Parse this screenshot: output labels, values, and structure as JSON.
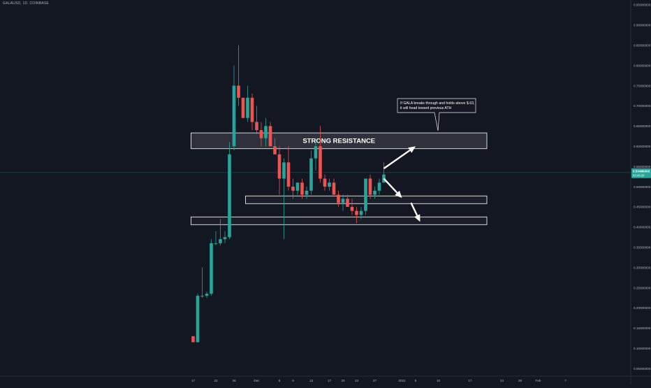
{
  "header": {
    "symbol_line": "GALAUSD, 1D, COINBASE"
  },
  "colors": {
    "background": "#131722",
    "up": "#26a69a",
    "down": "#ef5350",
    "axis_text": "#b2b5be",
    "annotation": "#ffffff",
    "price_tag_bg": "#26a69a"
  },
  "chart_data": {
    "type": "candlestick",
    "title": "GALAUSD, 1D, COINBASE",
    "y_axis_ticks": [
      "0.95000000",
      "0.90000000",
      "0.85000000",
      "0.80000000",
      "0.75000000",
      "0.70000000",
      "0.65000000",
      "0.60000000",
      "0.55000000",
      "0.50000000",
      "0.45000000",
      "0.40000000",
      "0.35000000",
      "0.30000000",
      "0.25000000",
      "0.20000000",
      "0.15000000",
      "0.10000000",
      "0.05000000"
    ],
    "y_tick_values": [
      0.95,
      0.9,
      0.85,
      0.8,
      0.75,
      0.7,
      0.65,
      0.6,
      0.55,
      0.5,
      0.45,
      0.4,
      0.35,
      0.3,
      0.25,
      0.2,
      0.15,
      0.1,
      0.05
    ],
    "ylim": [
      0.045,
      0.955
    ],
    "x_axis_ticks": [
      {
        "label": "17",
        "index": 0
      },
      {
        "label": "22",
        "index": 5
      },
      {
        "label": "26",
        "index": 9
      },
      {
        "label": "Dec",
        "index": 14
      },
      {
        "label": "6",
        "index": 19
      },
      {
        "label": "9",
        "index": 22
      },
      {
        "label": "13",
        "index": 26
      },
      {
        "label": "17",
        "index": 30
      },
      {
        "label": "20",
        "index": 33
      },
      {
        "label": "23",
        "index": 36
      },
      {
        "label": "27",
        "index": 40
      },
      {
        "label": "2022",
        "index": 46
      },
      {
        "label": "5",
        "index": 49
      },
      {
        "label": "10",
        "index": 54
      },
      {
        "label": "17",
        "index": 61
      },
      {
        "label": "24",
        "index": 68
      },
      {
        "label": "28",
        "index": 72
      },
      {
        "label": "Feb",
        "index": 76
      },
      {
        "label": "7",
        "index": 82
      }
    ],
    "candles": [
      {
        "o": 0.13,
        "h": 0.13,
        "l": 0.115,
        "c": 0.115
      },
      {
        "o": 0.115,
        "h": 0.235,
        "l": 0.115,
        "c": 0.23
      },
      {
        "o": 0.23,
        "h": 0.3,
        "l": 0.225,
        "c": 0.23
      },
      {
        "o": 0.23,
        "h": 0.24,
        "l": 0.225,
        "c": 0.235
      },
      {
        "o": 0.235,
        "h": 0.37,
        "l": 0.23,
        "c": 0.36
      },
      {
        "o": 0.36,
        "h": 0.39,
        "l": 0.355,
        "c": 0.36
      },
      {
        "o": 0.36,
        "h": 0.42,
        "l": 0.355,
        "c": 0.37
      },
      {
        "o": 0.37,
        "h": 0.39,
        "l": 0.36,
        "c": 0.375
      },
      {
        "o": 0.375,
        "h": 0.61,
        "l": 0.37,
        "c": 0.58
      },
      {
        "o": 0.6,
        "h": 0.8,
        "l": 0.59,
        "c": 0.75
      },
      {
        "o": 0.75,
        "h": 0.85,
        "l": 0.7,
        "c": 0.72
      },
      {
        "o": 0.72,
        "h": 0.72,
        "l": 0.67,
        "c": 0.67
      },
      {
        "o": 0.67,
        "h": 0.75,
        "l": 0.66,
        "c": 0.72
      },
      {
        "o": 0.72,
        "h": 0.73,
        "l": 0.64,
        "c": 0.66
      },
      {
        "o": 0.66,
        "h": 0.7,
        "l": 0.63,
        "c": 0.64
      },
      {
        "o": 0.64,
        "h": 0.66,
        "l": 0.6,
        "c": 0.62
      },
      {
        "o": 0.62,
        "h": 0.67,
        "l": 0.6,
        "c": 0.65
      },
      {
        "o": 0.65,
        "h": 0.66,
        "l": 0.6,
        "c": 0.6
      },
      {
        "o": 0.6,
        "h": 0.62,
        "l": 0.58,
        "c": 0.58
      },
      {
        "o": 0.58,
        "h": 0.6,
        "l": 0.48,
        "c": 0.52
      },
      {
        "o": 0.52,
        "h": 0.57,
        "l": 0.37,
        "c": 0.56
      },
      {
        "o": 0.56,
        "h": 0.6,
        "l": 0.49,
        "c": 0.5
      },
      {
        "o": 0.5,
        "h": 0.52,
        "l": 0.47,
        "c": 0.49
      },
      {
        "o": 0.49,
        "h": 0.51,
        "l": 0.48,
        "c": 0.51
      },
      {
        "o": 0.51,
        "h": 0.52,
        "l": 0.47,
        "c": 0.48
      },
      {
        "o": 0.48,
        "h": 0.5,
        "l": 0.47,
        "c": 0.49
      },
      {
        "o": 0.49,
        "h": 0.59,
        "l": 0.48,
        "c": 0.57
      },
      {
        "o": 0.57,
        "h": 0.62,
        "l": 0.54,
        "c": 0.6
      },
      {
        "o": 0.6,
        "h": 0.65,
        "l": 0.51,
        "c": 0.52
      },
      {
        "o": 0.52,
        "h": 0.53,
        "l": 0.49,
        "c": 0.5
      },
      {
        "o": 0.5,
        "h": 0.52,
        "l": 0.49,
        "c": 0.51
      },
      {
        "o": 0.51,
        "h": 0.52,
        "l": 0.48,
        "c": 0.48
      },
      {
        "o": 0.48,
        "h": 0.49,
        "l": 0.45,
        "c": 0.46
      },
      {
        "o": 0.46,
        "h": 0.48,
        "l": 0.44,
        "c": 0.47
      },
      {
        "o": 0.47,
        "h": 0.48,
        "l": 0.45,
        "c": 0.45
      },
      {
        "o": 0.45,
        "h": 0.47,
        "l": 0.43,
        "c": 0.44
      },
      {
        "o": 0.44,
        "h": 0.45,
        "l": 0.41,
        "c": 0.43
      },
      {
        "o": 0.43,
        "h": 0.45,
        "l": 0.42,
        "c": 0.44
      },
      {
        "o": 0.44,
        "h": 0.52,
        "l": 0.43,
        "c": 0.52
      },
      {
        "o": 0.52,
        "h": 0.53,
        "l": 0.47,
        "c": 0.48
      },
      {
        "o": 0.48,
        "h": 0.5,
        "l": 0.47,
        "c": 0.49
      },
      {
        "o": 0.49,
        "h": 0.52,
        "l": 0.48,
        "c": 0.51
      },
      {
        "o": 0.51,
        "h": 0.56,
        "l": 0.51,
        "c": 0.53
      }
    ],
    "zones": [
      {
        "label": "STRONG RESISTANCE",
        "top": 0.633,
        "bottom": 0.594,
        "start_index": 0,
        "end": "right"
      },
      {
        "label": "",
        "top": 0.477,
        "bottom": 0.458,
        "start_index": 12,
        "end": "right"
      },
      {
        "label": "",
        "top": 0.425,
        "bottom": 0.406,
        "start_index": 0,
        "end": "right"
      }
    ],
    "callout": {
      "text_lines": [
        "If GALA breaks through and holds above $.63,",
        "it will head toward previous ATH"
      ]
    },
    "arrows": [
      {
        "from": {
          "index": 42,
          "value": 0.545
        },
        "to": {
          "index": 49,
          "value": 0.6
        }
      },
      {
        "from": {
          "index": 42,
          "value": 0.52
        },
        "to": {
          "index": 46,
          "value": 0.472
        }
      },
      {
        "from": {
          "index": 48,
          "value": 0.46
        },
        "to": {
          "index": 50,
          "value": 0.413
        }
      }
    ],
    "current_price": {
      "value": 0.535,
      "label": "0.53486000",
      "countdown": "03:43:20"
    },
    "grid": false,
    "legend": "none"
  }
}
